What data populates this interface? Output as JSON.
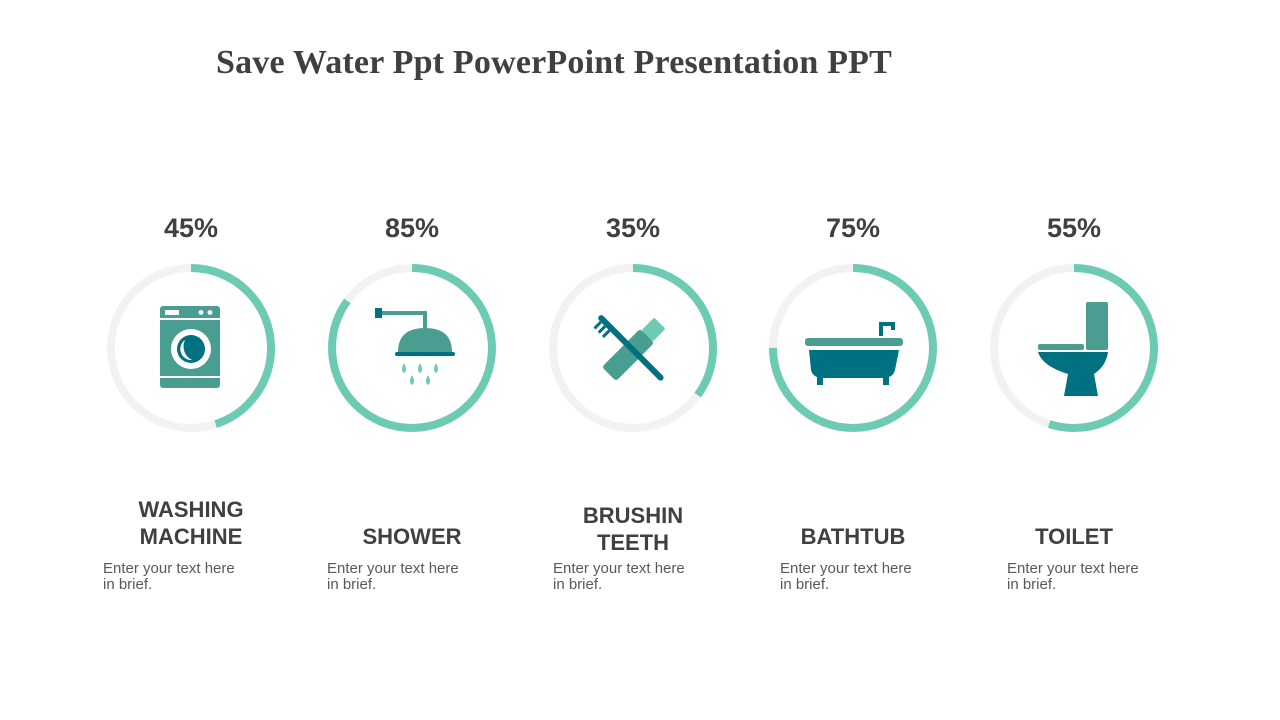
{
  "title": "Save Water Ppt PowerPoint Presentation PPT",
  "colors": {
    "accent": "#6ECBB3",
    "track": "#F2F2F2",
    "icon_dark": "#007180",
    "icon_mid": "#4A9E91",
    "text": "#404040"
  },
  "items": [
    {
      "percent": 45,
      "percent_label": "45%",
      "label_line1": "WASHING",
      "label_line2": "MACHINE",
      "description_line1": "Enter your text here",
      "description_line2": "in brief.",
      "icon": "washing-machine-icon"
    },
    {
      "percent": 85,
      "percent_label": "85%",
      "label_line1": "SHOWER",
      "label_line2": "",
      "description_line1": "Enter your text here",
      "description_line2": "in brief.",
      "icon": "shower-icon"
    },
    {
      "percent": 35,
      "percent_label": "35%",
      "label_line1": "BRUSHIN",
      "label_line2": "TEETH",
      "description_line1": "Enter your text here",
      "description_line2": "in brief.",
      "icon": "toothbrush-toothpaste-crossed-icon"
    },
    {
      "percent": 75,
      "percent_label": "75%",
      "label_line1": "BATHTUB",
      "label_line2": "",
      "description_line1": "Enter your text here",
      "description_line2": "in brief.",
      "icon": "bathtub-icon"
    },
    {
      "percent": 55,
      "percent_label": "55%",
      "label_line1": "TOILET",
      "label_line2": "",
      "description_line1": "Enter your text here",
      "description_line2": "in brief.",
      "icon": "toilet-icon"
    }
  ]
}
